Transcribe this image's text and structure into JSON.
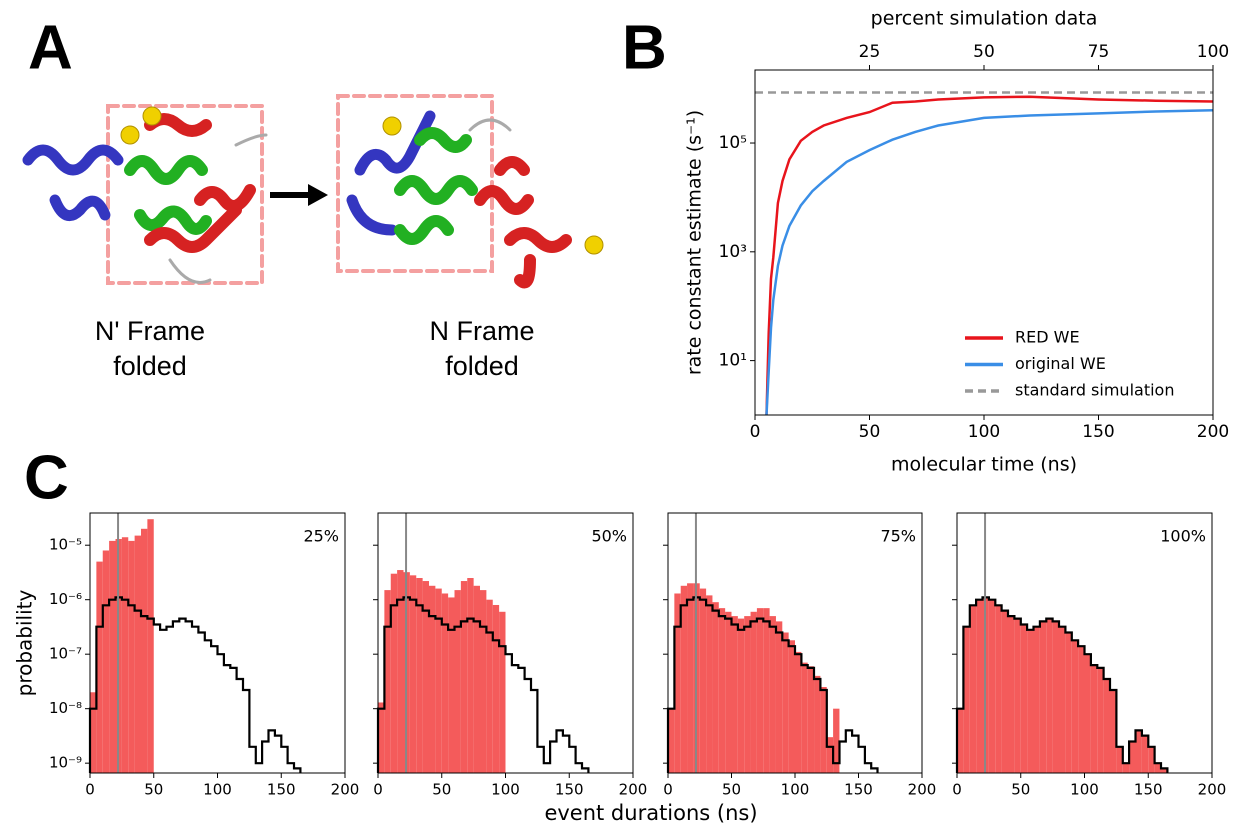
{
  "panel_labels": [
    "A",
    "B",
    "C"
  ],
  "structures": [
    {
      "label_lines": [
        "N' Frame",
        "folded"
      ]
    },
    {
      "label_lines": [
        "N Frame",
        "folded"
      ]
    }
  ],
  "panel_c_xlabel": "event durations (ns)",
  "chart_data": [
    {
      "type": "line",
      "yscale": "log",
      "xlabel": "molecular time (ns)",
      "ylabel": "rate constant estimate (s⁻¹)",
      "x2label": "percent simulation data",
      "legend": "lower right",
      "xlim": [
        0,
        200
      ],
      "xticks": [
        0,
        50,
        100,
        150,
        200
      ],
      "x2lim": [
        0,
        100
      ],
      "x2ticks": [
        25,
        50,
        75,
        100
      ],
      "ylim": [
        1,
        2200000
      ],
      "yticks": [
        {
          "value": 10,
          "label": "10¹"
        },
        {
          "value": 1000,
          "label": "10³"
        },
        {
          "value": 100000,
          "label": "10⁵"
        }
      ],
      "x": [
        5,
        6,
        7,
        8,
        10,
        12,
        15,
        20,
        25,
        30,
        40,
        50,
        60,
        70,
        80,
        100,
        120,
        150,
        175,
        200
      ],
      "series": [
        {
          "name": "RED WE",
          "color": "#e8141c",
          "values": [
            1,
            32,
            320,
            790,
            7900,
            20000,
            50000,
            110000,
            160000,
            210000,
            290000,
            370000,
            550000,
            580000,
            630000,
            690000,
            710000,
            630000,
            600000,
            580000
          ]
        },
        {
          "name": "original WE",
          "color": "#3a8ee6",
          "values": [
            1,
            6.3,
            40,
            130,
            550,
            1300,
            3000,
            7100,
            13000,
            20000,
            45000,
            74000,
            115000,
            160000,
            210000,
            290000,
            320000,
            350000,
            380000,
            400000
          ]
        },
        {
          "name": "standard simulation",
          "color": "#999999",
          "dashed": true,
          "x": [
            0,
            200
          ],
          "values": [
            850000,
            850000
          ]
        }
      ]
    },
    {
      "type": "histogram",
      "yscale": "log",
      "ylabel": "probability",
      "annotation": "25%",
      "vline": 22,
      "xlim": [
        0,
        200
      ],
      "xticks": [
        0,
        50,
        100,
        150,
        200
      ],
      "ylim": [
        6.6e-10,
        3.9e-05
      ],
      "yticks": [
        {
          "value": 1e-05,
          "label": "10⁻⁵"
        },
        {
          "value": 1e-06,
          "label": "10⁻⁶"
        },
        {
          "value": 1e-07,
          "label": "10⁻⁷"
        },
        {
          "value": 1e-08,
          "label": "10⁻⁸"
        },
        {
          "value": 1e-09,
          "label": "10⁻⁹"
        }
      ],
      "bins": [
        0,
        5,
        10,
        15,
        20,
        25,
        30,
        35,
        40,
        45,
        50,
        55,
        60,
        65,
        70,
        75,
        80,
        85,
        90,
        95,
        100,
        105,
        110,
        115,
        120,
        125,
        130,
        135,
        140,
        145,
        150,
        155,
        160,
        165
      ],
      "series": [
        {
          "style": "bar",
          "color": "#f45b5b",
          "values": [
            2e-08,
            5e-06,
            8e-06,
            1.2e-05,
            1.3e-05,
            1.4e-05,
            1.2e-05,
            1.5e-05,
            2e-05,
            3e-05,
            null,
            null,
            null,
            null,
            null,
            null,
            null,
            null,
            null,
            null,
            null,
            null,
            null,
            null,
            null,
            null,
            null,
            null,
            null,
            null,
            null,
            null,
            null
          ]
        },
        {
          "style": "step",
          "color": "#000000",
          "values": [
            1e-08,
            3.2e-07,
            7.9e-07,
            1e-06,
            1.1e-06,
            1e-06,
            7.9e-07,
            6.3e-07,
            5e-07,
            4.5e-07,
            3.5e-07,
            2.8e-07,
            3.2e-07,
            4e-07,
            4.5e-07,
            4e-07,
            3.2e-07,
            2.5e-07,
            1.8e-07,
            1.4e-07,
            1e-07,
            6.3e-08,
            5.6e-08,
            3.5e-08,
            2.2e-08,
            2e-09,
            1e-09,
            2.5e-09,
            4e-09,
            3.2e-09,
            2e-09,
            1e-09,
            8e-10
          ]
        }
      ]
    },
    {
      "type": "histogram",
      "yscale": "log",
      "annotation": "50%",
      "vline": 22,
      "xlim": [
        0,
        200
      ],
      "xticks": [
        0,
        50,
        100,
        150,
        200
      ],
      "ylim": [
        6.6e-10,
        3.9e-05
      ],
      "yticks": [
        1e-05,
        1e-06,
        1e-07,
        1e-08,
        1e-09
      ],
      "bins": [
        0,
        5,
        10,
        15,
        20,
        25,
        30,
        35,
        40,
        45,
        50,
        55,
        60,
        65,
        70,
        75,
        80,
        85,
        90,
        95,
        100,
        105,
        110,
        115,
        120,
        125,
        130,
        135,
        140,
        145,
        150,
        155,
        160,
        165
      ],
      "series": [
        {
          "style": "bar",
          "color": "#f45b5b",
          "values": [
            1.3e-08,
            1.5e-06,
            3e-06,
            3.5e-06,
            3.2e-06,
            2.8e-06,
            2.5e-06,
            2.2e-06,
            1.8e-06,
            1.6e-06,
            1.3e-06,
            1.1e-06,
            1.5e-06,
            2.2e-06,
            2.5e-06,
            1.8e-06,
            1.5e-06,
            1e-06,
            8e-07,
            6e-07,
            null,
            null,
            null,
            null,
            null,
            null,
            null,
            null,
            null,
            null,
            null,
            null,
            null
          ]
        },
        {
          "style": "step",
          "color": "#000000",
          "values": [
            1e-08,
            3.2e-07,
            7.9e-07,
            1e-06,
            1.1e-06,
            1e-06,
            7.9e-07,
            6.3e-07,
            5e-07,
            4.5e-07,
            3.5e-07,
            2.8e-07,
            3.2e-07,
            4e-07,
            4.5e-07,
            4e-07,
            3.2e-07,
            2.5e-07,
            1.8e-07,
            1.4e-07,
            1e-07,
            6.3e-08,
            5.6e-08,
            3.5e-08,
            2.2e-08,
            2e-09,
            1e-09,
            2.5e-09,
            4e-09,
            3.2e-09,
            2e-09,
            1e-09,
            8e-10
          ]
        }
      ]
    },
    {
      "type": "histogram",
      "yscale": "log",
      "annotation": "75%",
      "vline": 22,
      "xlim": [
        0,
        200
      ],
      "xticks": [
        0,
        50,
        100,
        150,
        200
      ],
      "ylim": [
        6.6e-10,
        3.9e-05
      ],
      "yticks": [
        1e-05,
        1e-06,
        1e-07,
        1e-08,
        1e-09
      ],
      "bins": [
        0,
        5,
        10,
        15,
        20,
        25,
        30,
        35,
        40,
        45,
        50,
        55,
        60,
        65,
        70,
        75,
        80,
        85,
        90,
        95,
        100,
        105,
        110,
        115,
        120,
        125,
        130,
        135,
        140,
        145,
        150,
        155,
        160,
        165
      ],
      "series": [
        {
          "style": "bar",
          "color": "#f45b5b",
          "values": [
            1e-08,
            1.3e-06,
            1.8e-06,
            2e-06,
            2e-06,
            1.6e-06,
            1.2e-06,
            9e-07,
            7e-07,
            6e-07,
            5e-07,
            4.5e-07,
            5e-07,
            6e-07,
            7e-07,
            7e-07,
            5e-07,
            4e-07,
            2.5e-07,
            1.8e-07,
            1.1e-07,
            7e-08,
            6e-08,
            4e-08,
            2.5e-08,
            3e-09,
            1e-08,
            null,
            null,
            null,
            null,
            null,
            null
          ]
        },
        {
          "style": "step",
          "color": "#000000",
          "values": [
            1e-08,
            3.2e-07,
            7.9e-07,
            1e-06,
            1.1e-06,
            1e-06,
            7.9e-07,
            6.3e-07,
            5e-07,
            4.5e-07,
            3.5e-07,
            2.8e-07,
            3.2e-07,
            4e-07,
            4.5e-07,
            4e-07,
            3.2e-07,
            2.5e-07,
            1.8e-07,
            1.4e-07,
            1e-07,
            6.3e-08,
            5.6e-08,
            3.5e-08,
            2.2e-08,
            2e-09,
            1e-09,
            2.5e-09,
            4e-09,
            3.2e-09,
            2e-09,
            1e-09,
            8e-10
          ]
        }
      ]
    },
    {
      "type": "histogram",
      "yscale": "log",
      "annotation": "100%",
      "vline": 22,
      "xlim": [
        0,
        200
      ],
      "xticks": [
        0,
        50,
        100,
        150,
        200
      ],
      "ylim": [
        6.6e-10,
        3.9e-05
      ],
      "yticks": [
        1e-05,
        1e-06,
        1e-07,
        1e-08,
        1e-09
      ],
      "bins": [
        0,
        5,
        10,
        15,
        20,
        25,
        30,
        35,
        40,
        45,
        50,
        55,
        60,
        65,
        70,
        75,
        80,
        85,
        90,
        95,
        100,
        105,
        110,
        115,
        120,
        125,
        130,
        135,
        140,
        145,
        150,
        155,
        160,
        165
      ],
      "series": [
        {
          "style": "bar",
          "color": "#f45b5b",
          "values": [
            1e-08,
            3.2e-07,
            7.9e-07,
            1e-06,
            1.1e-06,
            1e-06,
            7.9e-07,
            6.3e-07,
            5e-07,
            4.5e-07,
            3.5e-07,
            2.8e-07,
            3.2e-07,
            4e-07,
            4.5e-07,
            4e-07,
            3.2e-07,
            2.5e-07,
            1.8e-07,
            1.4e-07,
            1e-07,
            6.3e-08,
            5.6e-08,
            3.5e-08,
            2.2e-08,
            2e-09,
            1e-09,
            2.5e-09,
            4e-09,
            3.2e-09,
            2e-09,
            1e-09,
            8e-10
          ]
        },
        {
          "style": "step",
          "color": "#000000",
          "values": [
            1e-08,
            3.2e-07,
            7.9e-07,
            1e-06,
            1.1e-06,
            1e-06,
            7.9e-07,
            6.3e-07,
            5e-07,
            4.5e-07,
            3.5e-07,
            2.8e-07,
            3.2e-07,
            4e-07,
            4.5e-07,
            4e-07,
            3.2e-07,
            2.5e-07,
            1.8e-07,
            1.4e-07,
            1e-07,
            6.3e-08,
            5.6e-08,
            3.5e-08,
            2.2e-08,
            2e-09,
            1e-09,
            2.5e-09,
            4e-09,
            3.2e-09,
            2e-09,
            1e-09,
            8e-10
          ]
        }
      ]
    }
  ]
}
